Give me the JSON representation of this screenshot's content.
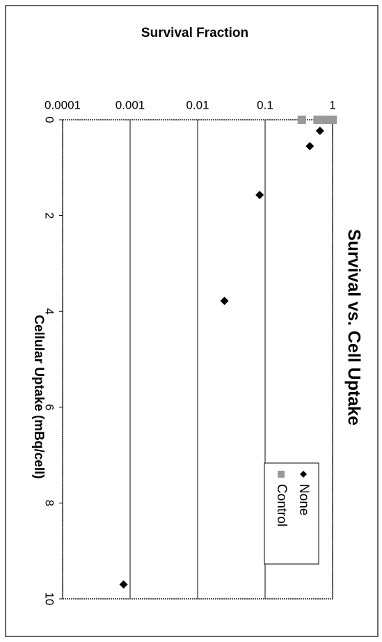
{
  "chart_data": {
    "type": "scatter",
    "title": "Survival vs. Cell Uptake",
    "x_label": "Cellular Uptake (mBq/cell)",
    "y_label": "Survival Fraction",
    "xlim": [
      0,
      10
    ],
    "xticks": [
      0,
      2,
      4,
      6,
      8,
      10
    ],
    "ylim": [
      0.0001,
      1
    ],
    "yticks": [
      0.0001,
      0.001,
      0.01,
      0.1,
      1
    ],
    "ylog": true,
    "grid": true,
    "legend": "upper right",
    "series": [
      {
        "name": "None",
        "color": "#000000",
        "marker": "diamond",
        "x": [
          0.23,
          0.55,
          1.57,
          3.78,
          9.7
        ],
        "values": [
          0.65,
          0.46,
          0.083,
          0.025,
          0.0008
        ]
      },
      {
        "name": "Control",
        "color": "#999999",
        "marker": "square",
        "x": [
          0,
          0,
          0,
          0
        ],
        "values": [
          1,
          0.8,
          0.6,
          0.35
        ]
      }
    ]
  }
}
